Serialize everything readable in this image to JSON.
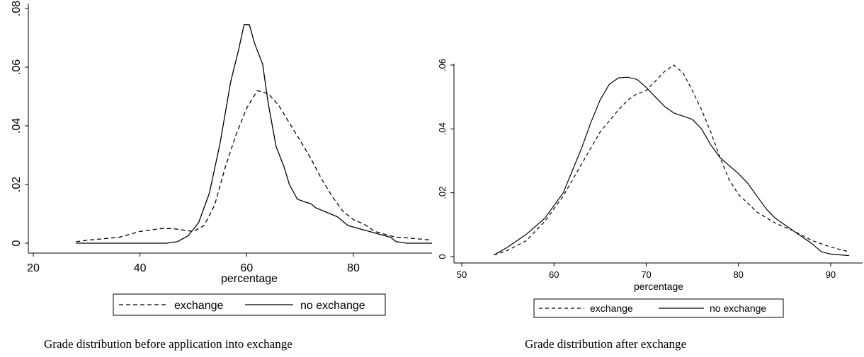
{
  "chart_data": [
    {
      "type": "line",
      "xlabel": "percentage",
      "ylabel": "",
      "xlim": [
        20,
        95
      ],
      "ylim": [
        0,
        0.08
      ],
      "x_ticks": [
        20,
        40,
        60,
        80
      ],
      "x_tick_labels": [
        "20",
        "40",
        "60",
        "80"
      ],
      "y_ticks": [
        0,
        0.02,
        0.04,
        0.06,
        0.08
      ],
      "y_tick_labels": [
        "0",
        ".02",
        ".04",
        ".06",
        ".08"
      ],
      "grid": false,
      "legend_position": "bottom",
      "series": [
        {
          "name": "exchange",
          "style": "dashed",
          "points": [
            [
              28,
              0.0005
            ],
            [
              30,
              0.001
            ],
            [
              33,
              0.0015
            ],
            [
              36,
              0.002
            ],
            [
              38,
              0.003
            ],
            [
              40,
              0.004
            ],
            [
              42,
              0.0045
            ],
            [
              44,
              0.005
            ],
            [
              46,
              0.005
            ],
            [
              48,
              0.0045
            ],
            [
              50,
              0.004
            ],
            [
              52,
              0.006
            ],
            [
              54,
              0.013
            ],
            [
              56,
              0.026
            ],
            [
              58,
              0.037
            ],
            [
              60,
              0.046
            ],
            [
              62,
              0.052
            ],
            [
              64,
              0.051
            ],
            [
              66,
              0.047
            ],
            [
              68,
              0.041
            ],
            [
              70,
              0.035
            ],
            [
              72,
              0.029
            ],
            [
              74,
              0.022
            ],
            [
              76,
              0.016
            ],
            [
              78,
              0.011
            ],
            [
              80,
              0.008
            ],
            [
              82,
              0.0065
            ],
            [
              84,
              0.004
            ],
            [
              86,
              0.003
            ],
            [
              88,
              0.002
            ],
            [
              90,
              0.0018
            ],
            [
              92,
              0.0015
            ],
            [
              95,
              0.001
            ]
          ]
        },
        {
          "name": "no exchange",
          "style": "solid",
          "points": [
            [
              28,
              0
            ],
            [
              35,
              0
            ],
            [
              40,
              0
            ],
            [
              45,
              0
            ],
            [
              47,
              0.0005
            ],
            [
              49,
              0.0025
            ],
            [
              51,
              0.007
            ],
            [
              53,
              0.017
            ],
            [
              55,
              0.034
            ],
            [
              57,
              0.055
            ],
            [
              58.5,
              0.066
            ],
            [
              59.5,
              0.0745
            ],
            [
              60.5,
              0.0745
            ],
            [
              61.5,
              0.068
            ],
            [
              63,
              0.061
            ],
            [
              64,
              0.048
            ],
            [
              65.5,
              0.033
            ],
            [
              67,
              0.026
            ],
            [
              68,
              0.02
            ],
            [
              69.5,
              0.015
            ],
            [
              71,
              0.014
            ],
            [
              72,
              0.0135
            ],
            [
              73,
              0.012
            ],
            [
              75,
              0.0105
            ],
            [
              77,
              0.009
            ],
            [
              79,
              0.006
            ],
            [
              81,
              0.005
            ],
            [
              83,
              0.004
            ],
            [
              85,
              0.003
            ],
            [
              87,
              0.002
            ],
            [
              88,
              0.0005
            ],
            [
              90,
              0
            ],
            [
              95,
              0
            ]
          ]
        }
      ]
    },
    {
      "type": "line",
      "xlabel": "percentage",
      "ylabel": "",
      "xlim": [
        50,
        93
      ],
      "ylim": [
        0,
        0.06
      ],
      "x_ticks": [
        50,
        60,
        70,
        80,
        90
      ],
      "x_tick_labels": [
        "50",
        "60",
        "70",
        "80",
        "90"
      ],
      "y_ticks": [
        0,
        0.02,
        0.04,
        0.06
      ],
      "y_tick_labels": [
        "0",
        ".02",
        ".04",
        ".06"
      ],
      "grid": false,
      "legend_position": "bottom",
      "series": [
        {
          "name": "exchange",
          "style": "dashed",
          "points": [
            [
              53.5,
              0.0005
            ],
            [
              55,
              0.002
            ],
            [
              57,
              0.005
            ],
            [
              59,
              0.011
            ],
            [
              61,
              0.019
            ],
            [
              63,
              0.029
            ],
            [
              65,
              0.039
            ],
            [
              67,
              0.046
            ],
            [
              68,
              0.049
            ],
            [
              69,
              0.051
            ],
            [
              70,
              0.052
            ],
            [
              71,
              0.055
            ],
            [
              72,
              0.058
            ],
            [
              73,
              0.06
            ],
            [
              74,
              0.0575
            ],
            [
              75,
              0.052
            ],
            [
              76,
              0.046
            ],
            [
              77,
              0.039
            ],
            [
              78,
              0.031
            ],
            [
              79,
              0.024
            ],
            [
              80,
              0.0195
            ],
            [
              82,
              0.014
            ],
            [
              84,
              0.0105
            ],
            [
              86,
              0.008
            ],
            [
              88,
              0.005
            ],
            [
              90,
              0.003
            ],
            [
              92,
              0.0015
            ]
          ]
        },
        {
          "name": "no exchange",
          "style": "solid",
          "points": [
            [
              53.5,
              0.0005
            ],
            [
              55,
              0.003
            ],
            [
              57,
              0.007
            ],
            [
              59,
              0.012
            ],
            [
              61,
              0.02
            ],
            [
              63,
              0.034
            ],
            [
              64,
              0.042
            ],
            [
              65,
              0.049
            ],
            [
              66,
              0.054
            ],
            [
              67,
              0.056
            ],
            [
              68,
              0.0562
            ],
            [
              69,
              0.0555
            ],
            [
              70,
              0.053
            ],
            [
              71,
              0.05
            ],
            [
              72,
              0.047
            ],
            [
              73,
              0.045
            ],
            [
              74,
              0.044
            ],
            [
              75,
              0.043
            ],
            [
              76,
              0.04
            ],
            [
              77,
              0.035
            ],
            [
              78,
              0.031
            ],
            [
              80,
              0.026
            ],
            [
              81,
              0.023
            ],
            [
              82,
              0.019
            ],
            [
              83,
              0.015
            ],
            [
              84,
              0.012
            ],
            [
              86,
              0.008
            ],
            [
              88,
              0.004
            ],
            [
              89,
              0.0015
            ],
            [
              90,
              0.0008
            ],
            [
              92,
              0.0003
            ]
          ]
        }
      ]
    }
  ],
  "captions": {
    "left": "Grade distribution before application into exchange",
    "right": "Grade distribution after exchange"
  }
}
